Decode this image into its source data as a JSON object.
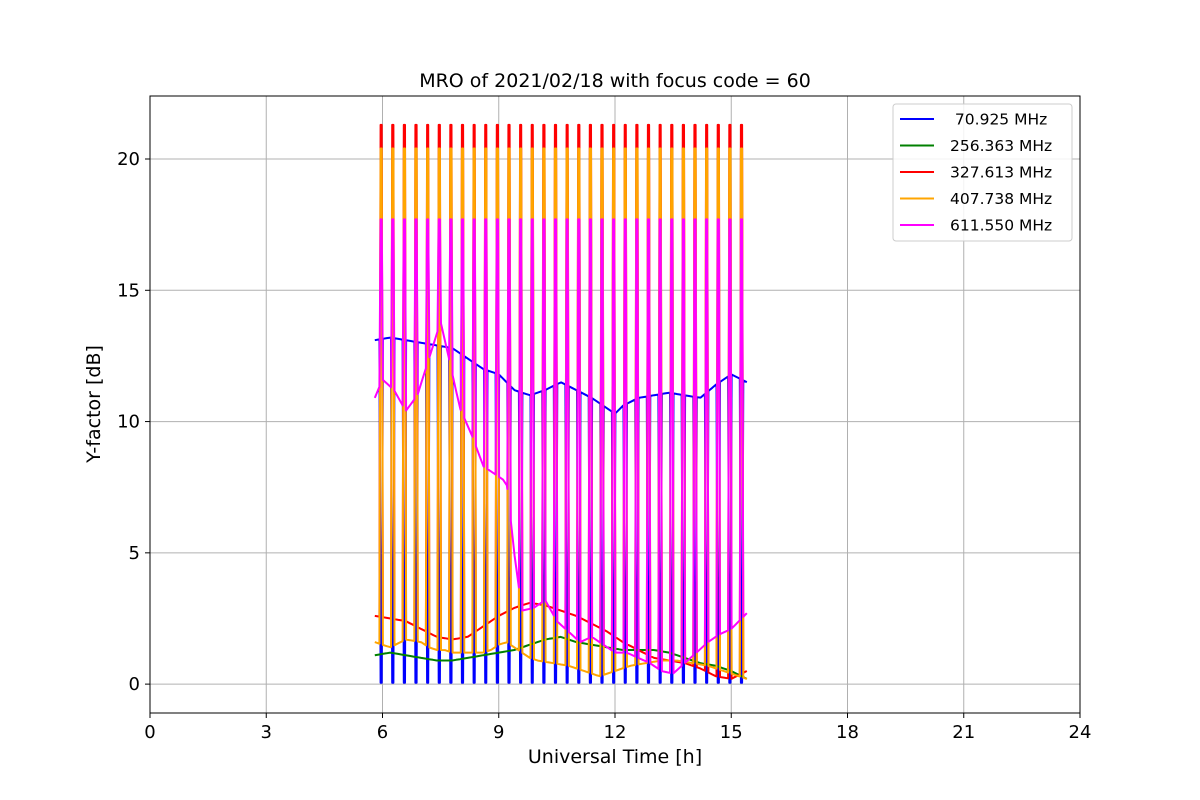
{
  "chart_data": {
    "type": "line",
    "title": "MRO of 2021/02/18 with focus code = 60",
    "xlabel": "Universal Time [h]",
    "ylabel": "Y-factor [dB]",
    "xlim": [
      0,
      24
    ],
    "ylim": [
      -1.1,
      22.4
    ],
    "xticks": [
      0,
      3,
      6,
      9,
      12,
      15,
      18,
      21,
      24
    ],
    "yticks": [
      0,
      5,
      10,
      15,
      20
    ],
    "grid": true,
    "legend_position": "top-right",
    "pulse_times": [
      5.95,
      6.25,
      6.55,
      6.85,
      7.15,
      7.45,
      7.75,
      8.05,
      8.35,
      8.65,
      8.95,
      9.25,
      9.55,
      9.85,
      10.15,
      10.45,
      10.75,
      11.05,
      11.35,
      11.65,
      11.95,
      12.25,
      12.55,
      12.85,
      13.15,
      13.45,
      13.75,
      14.05,
      14.35,
      14.65,
      14.95,
      15.25
    ],
    "series": [
      {
        "name": " 70.925 MHz",
        "color": "#0000ff",
        "baseline_x": [
          5.8,
          6.2,
          6.6,
          7.0,
          7.4,
          7.8,
          8.2,
          8.6,
          9.0,
          9.4,
          9.8,
          10.2,
          10.6,
          11.0,
          11.4,
          11.8,
          12.0,
          12.2,
          12.6,
          13.0,
          13.4,
          13.8,
          14.2,
          14.6,
          15.0,
          15.4
        ],
        "baseline_y": [
          13.1,
          13.2,
          13.1,
          13.0,
          12.9,
          12.8,
          12.4,
          12.0,
          11.8,
          11.2,
          11.0,
          11.2,
          11.5,
          11.2,
          10.9,
          10.5,
          10.3,
          10.6,
          10.9,
          11.0,
          11.1,
          11.0,
          10.9,
          11.4,
          11.8,
          11.5
        ],
        "pulse_peak": 0.05
      },
      {
        "name": "256.363 MHz",
        "color": "#008000",
        "baseline_x": [
          5.8,
          6.2,
          6.6,
          7.0,
          7.4,
          7.8,
          8.2,
          8.6,
          9.0,
          9.4,
          9.8,
          10.2,
          10.6,
          11.0,
          11.4,
          11.8,
          12.2,
          12.6,
          13.0,
          13.4,
          13.8,
          14.2,
          14.6,
          15.0,
          15.4
        ],
        "baseline_y": [
          1.1,
          1.2,
          1.1,
          1.0,
          0.9,
          0.9,
          1.0,
          1.1,
          1.2,
          1.3,
          1.5,
          1.7,
          1.8,
          1.6,
          1.5,
          1.4,
          1.3,
          1.3,
          1.3,
          1.2,
          1.0,
          0.8,
          0.7,
          0.5,
          0.2
        ],
        "pulse_peak": null
      },
      {
        "name": "327.613 MHz",
        "color": "#ff0000",
        "baseline_x": [
          5.8,
          6.2,
          6.6,
          7.0,
          7.4,
          7.8,
          8.2,
          8.6,
          9.0,
          9.4,
          9.8,
          10.2,
          10.6,
          11.0,
          11.4,
          11.8,
          12.2,
          12.6,
          13.0,
          13.4,
          13.8,
          14.2,
          14.6,
          15.0,
          15.4
        ],
        "baseline_y": [
          2.6,
          2.5,
          2.4,
          2.1,
          1.8,
          1.7,
          1.8,
          2.2,
          2.6,
          2.9,
          3.1,
          3.0,
          2.8,
          2.6,
          2.3,
          2.0,
          1.6,
          1.3,
          1.0,
          0.9,
          0.8,
          0.6,
          0.3,
          0.2,
          0.5
        ],
        "pulse_peak": 21.3
      },
      {
        "name": "407.738 MHz",
        "color": "#ffa500",
        "baseline_x": [
          5.8,
          6.0,
          6.2,
          6.6,
          7.0,
          7.2,
          7.4,
          7.6,
          7.8,
          8.0,
          8.2,
          8.6,
          8.8,
          9.0,
          9.2,
          9.4,
          9.6,
          9.8,
          10.0,
          10.4,
          10.8,
          11.2,
          11.6,
          12.0,
          12.4,
          12.8,
          13.2,
          13.6,
          14.0,
          14.4,
          14.8,
          15.2,
          15.4
        ],
        "baseline_y": [
          1.6,
          1.5,
          1.4,
          1.7,
          1.6,
          1.4,
          1.3,
          1.3,
          1.2,
          1.2,
          1.2,
          1.2,
          1.3,
          1.5,
          1.6,
          1.4,
          1.2,
          1.0,
          0.9,
          0.8,
          0.7,
          0.5,
          0.3,
          0.5,
          0.7,
          0.8,
          0.9,
          0.9,
          0.8,
          0.7,
          0.5,
          0.3,
          0.2
        ],
        "pulse_peak": 20.4
      },
      {
        "name": "611.550 MHz",
        "color": "#ff00ff",
        "baseline_x": [
          5.8,
          6.0,
          6.3,
          6.6,
          6.9,
          7.2,
          7.5,
          7.7,
          8.0,
          8.3,
          8.6,
          8.9,
          9.2,
          9.4,
          9.6,
          9.9,
          10.2,
          10.5,
          10.8,
          11.1,
          11.4,
          11.7,
          12.0,
          12.3,
          12.6,
          12.9,
          13.2,
          13.5,
          13.8,
          14.1,
          14.4,
          14.7,
          15.0,
          15.4
        ],
        "baseline_y": [
          10.9,
          11.6,
          11.2,
          10.4,
          11.0,
          12.4,
          13.8,
          12.5,
          10.5,
          9.5,
          8.3,
          8.0,
          7.7,
          5.0,
          2.8,
          2.9,
          3.2,
          2.4,
          2.0,
          1.6,
          1.8,
          1.5,
          1.2,
          1.2,
          1.0,
          0.8,
          0.5,
          0.4,
          0.8,
          1.2,
          1.6,
          1.9,
          2.1,
          2.7
        ],
        "pulse_peak": 17.7
      }
    ]
  }
}
